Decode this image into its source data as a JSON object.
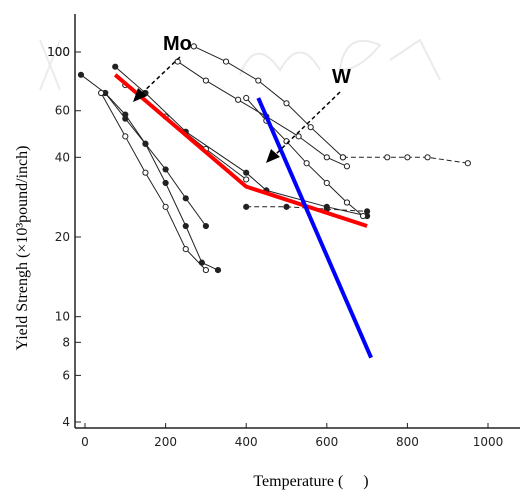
{
  "chart_data": {
    "type": "line",
    "xlabel": "Temperature (     )",
    "ylabel": "Yield Strengh (×10³pound/inch)",
    "x_scale": "linear",
    "y_scale": "log",
    "xlim": [
      -10,
      1000
    ],
    "ylim": [
      4,
      110
    ],
    "x_ticks": [
      "0",
      "200",
      "400",
      "600",
      "800",
      "1000"
    ],
    "y_ticks": [
      "4",
      "6",
      "8",
      "10",
      "20",
      "40",
      "60",
      "100",
      "100"
    ],
    "grid": false,
    "annotations": [
      "Mo",
      "W"
    ],
    "series": [
      {
        "name": "Mo",
        "color": "#ff0000",
        "role": "highlight",
        "x": [
          75,
          400,
          700
        ],
        "y": [
          82,
          31,
          22
        ]
      },
      {
        "name": "W",
        "color": "#0000ff",
        "role": "highlight",
        "x": [
          430,
          710
        ],
        "y": [
          67,
          7
        ]
      },
      {
        "color": "#222222",
        "style": "solid",
        "marker": "filled",
        "x": [
          -10,
          50,
          100,
          150,
          200,
          250,
          290,
          330
        ],
        "y": [
          82,
          70,
          58,
          45,
          32,
          22,
          16,
          15
        ]
      },
      {
        "color": "#222222",
        "style": "solid",
        "marker": "filled",
        "x": [
          50,
          100,
          150,
          200,
          250,
          300
        ],
        "y": [
          70,
          56,
          45,
          36,
          28,
          22
        ]
      },
      {
        "color": "#222222",
        "style": "solid",
        "marker": "open",
        "x": [
          40,
          100,
          150,
          200,
          250,
          300
        ],
        "y": [
          70,
          48,
          35,
          26,
          18,
          15
        ]
      },
      {
        "color": "#222222",
        "style": "solid",
        "marker": "filled",
        "x": [
          75,
          150,
          250,
          400,
          450,
          600,
          700
        ],
        "y": [
          88,
          70,
          50,
          35,
          30,
          26,
          24
        ]
      },
      {
        "color": "#222222",
        "style": "solid",
        "marker": "open",
        "x": [
          100,
          200,
          300,
          400
        ],
        "y": [
          75,
          57,
          43,
          33
        ]
      },
      {
        "color": "#222222",
        "style": "solid",
        "marker": "open",
        "x": [
          230,
          300,
          380,
          450,
          530,
          600,
          650
        ],
        "y": [
          92,
          78,
          66,
          57,
          48,
          40,
          37
        ]
      },
      {
        "color": "#222222",
        "style": "solid",
        "marker": "open",
        "x": [
          400,
          450,
          500,
          550,
          600,
          650,
          690
        ],
        "y": [
          67,
          55,
          46,
          38,
          32,
          27,
          24
        ]
      },
      {
        "color": "#222222",
        "style": "solid",
        "marker": "open",
        "x": [
          270,
          350,
          430,
          500,
          560,
          640
        ],
        "y": [
          105,
          92,
          78,
          64,
          52,
          40
        ]
      },
      {
        "color": "#222222",
        "style": "dashed",
        "marker": "open",
        "x": [
          640,
          750,
          800,
          850,
          950
        ],
        "y": [
          40,
          40,
          40,
          40,
          38
        ]
      },
      {
        "color": "#222222",
        "style": "dashed",
        "marker": "filled",
        "x": [
          400,
          500,
          600,
          700
        ],
        "y": [
          26,
          26,
          25.5,
          25
        ]
      }
    ]
  }
}
